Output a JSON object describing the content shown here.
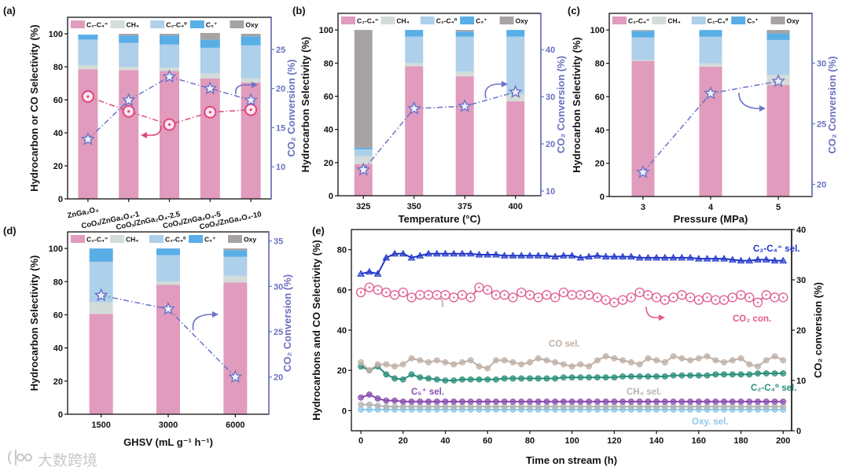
{
  "watermark": "大数跨境",
  "chart_data": [
    {
      "panel": "(a)",
      "type": "bar",
      "stacked": true,
      "categories": [
        "ZnGa₂O₄",
        "CoOₓ/ZnGa₂O₄-1",
        "CoOₓ/ZnGa₂O₄-2.5",
        "CoOₓ/ZnGa₂O₄-5",
        "CoOₓ/ZnGa₂O₄-10"
      ],
      "xlabel": "",
      "ylabel": "Hydrocarbon or CO Selectivity (%)",
      "y2label": "CO₂ Conversion (%)",
      "ylim": [
        0,
        110
      ],
      "yticks": [
        0,
        20,
        40,
        60,
        80,
        100
      ],
      "y2lim": [
        5.9,
        29.1
      ],
      "y2ticks": [
        10,
        15,
        20,
        25
      ],
      "legend": "top",
      "series": [
        {
          "name": "C₂-C₄⁼",
          "color": "#e09bbd",
          "values": [
            78.5,
            78,
            77.5,
            73,
            70.5
          ]
        },
        {
          "name": "CH₄",
          "color": "#d3dcd8",
          "values": [
            2.5,
            2,
            2,
            3,
            2.5
          ]
        },
        {
          "name": "C₂-C₄⁰",
          "color": "#aed0ea",
          "values": [
            15.5,
            14.5,
            14,
            15.5,
            20
          ]
        },
        {
          "name": "C₅⁺",
          "color": "#5aaee6",
          "values": [
            3,
            4.5,
            5.5,
            5,
            5.5
          ]
        },
        {
          "name": "Oxy",
          "color": "#a8a2a2",
          "values": [
            0,
            1,
            1,
            4,
            1.5
          ]
        }
      ],
      "lines": [
        {
          "key": "co-selectivity",
          "axis": "left",
          "marker": "circle",
          "color": "#e0457c",
          "values": [
            62,
            53,
            45,
            52.5,
            54
          ]
        },
        {
          "key": "co2-conversion",
          "axis": "right",
          "marker": "star",
          "color": "#6b72c6",
          "values": [
            13.5,
            18.5,
            21.5,
            20,
            18.5
          ]
        }
      ]
    },
    {
      "panel": "(b)",
      "type": "bar",
      "stacked": true,
      "categories": [
        "325",
        "350",
        "375",
        "400"
      ],
      "xlabel": "Temperature (°C)",
      "ylabel": "Hydrocarbon Selectivity (%)",
      "y2label": "CO₂ Conversion (%)",
      "ylim": [
        0,
        110
      ],
      "yticks": [
        0,
        20,
        40,
        60,
        80,
        100
      ],
      "y2lim": [
        9,
        47.7
      ],
      "y2ticks": [
        10,
        20,
        30,
        40
      ],
      "legend": "top",
      "series": [
        {
          "name": "C₂-C₄⁼",
          "color": "#e09bbd",
          "values": [
            19,
            78,
            72,
            57
          ]
        },
        {
          "name": "CH₄",
          "color": "#d3dcd8",
          "values": [
            5,
            2,
            3,
            4
          ]
        },
        {
          "name": "C₂-C₄⁰",
          "color": "#aed0ea",
          "values": [
            4,
            16,
            21,
            35
          ]
        },
        {
          "name": "C₅⁺",
          "color": "#5aaee6",
          "values": [
            1,
            4,
            3,
            4
          ]
        },
        {
          "name": "Oxy",
          "color": "#a8a2a2",
          "values": [
            71,
            0,
            1,
            0
          ]
        }
      ],
      "lines": [
        {
          "key": "co2-conversion",
          "axis": "right",
          "marker": "star",
          "color": "#6b72c6",
          "values": [
            14.5,
            27.5,
            28,
            31
          ]
        }
      ]
    },
    {
      "panel": "(c)",
      "type": "bar",
      "stacked": true,
      "categories": [
        "3",
        "4",
        "5"
      ],
      "xlabel": "Pressure (MPa)",
      "ylabel": "Hydrocarbon Selectivity (%)",
      "y2label": "CO₂ Conversion (%)",
      "ylim": [
        0,
        110
      ],
      "yticks": [
        0,
        20,
        40,
        60,
        80,
        100
      ],
      "y2lim": [
        19,
        34.1
      ],
      "y2ticks": [
        20,
        25,
        30
      ],
      "legend": "top",
      "series": [
        {
          "name": "C₂-C₄⁼",
          "color": "#e09bbd",
          "values": [
            81.5,
            78,
            67
          ]
        },
        {
          "name": "CH₄",
          "color": "#d3dcd8",
          "values": [
            0.5,
            2,
            6
          ]
        },
        {
          "name": "C₂-C₄⁰",
          "color": "#aed0ea",
          "values": [
            13.5,
            16,
            21
          ]
        },
        {
          "name": "C₅⁺",
          "color": "#5aaee6",
          "values": [
            4,
            4,
            4
          ]
        },
        {
          "name": "Oxy",
          "color": "#a8a2a2",
          "values": [
            0.5,
            0,
            2
          ]
        }
      ],
      "lines": [
        {
          "key": "co2-conversion",
          "axis": "right",
          "marker": "star",
          "color": "#6b72c6",
          "values": [
            21,
            27.5,
            28.5
          ]
        }
      ]
    },
    {
      "panel": "(d)",
      "type": "bar",
      "stacked": true,
      "categories": [
        "1500",
        "3000",
        "6000"
      ],
      "xlabel": "GHSV (mL g⁻¹ h⁻¹)",
      "ylabel": "Hydrocarbon Selectivity (%)",
      "y2label": "CO₂ Conversion (%)",
      "ylim": [
        0,
        110
      ],
      "yticks": [
        0,
        20,
        40,
        60,
        80,
        100
      ],
      "y2lim": [
        15.9,
        36
      ],
      "y2ticks": [
        20,
        25,
        30,
        35
      ],
      "legend": "top",
      "series": [
        {
          "name": "C₂-C₄⁼",
          "color": "#e09bbd",
          "values": [
            60.5,
            78,
            79.5
          ]
        },
        {
          "name": "CH₄",
          "color": "#d3dcd8",
          "values": [
            7,
            2,
            4
          ]
        },
        {
          "name": "C₂-C₄⁰",
          "color": "#aed0ea",
          "values": [
            24.5,
            16,
            11.5
          ]
        },
        {
          "name": "C₅⁺",
          "color": "#5aaee6",
          "values": [
            8,
            4,
            4
          ]
        },
        {
          "name": "Oxy",
          "color": "#a8a2a2",
          "values": [
            0,
            0,
            1
          ]
        }
      ],
      "lines": [
        {
          "key": "co2-conversion",
          "axis": "right",
          "marker": "star",
          "color": "#6b72c6",
          "values": [
            29,
            27.5,
            20
          ]
        }
      ]
    },
    {
      "panel": "(e)",
      "type": "scatter",
      "xlabel": "Time on stream (h)",
      "ylabel": "Hydrocarbons and CO Selectivity (%)",
      "y2label": "CO₂ conversion (%)",
      "xlim": [
        -4.5,
        204
      ],
      "xticks": [
        0,
        20,
        40,
        60,
        80,
        100,
        120,
        140,
        160,
        180,
        200
      ],
      "ylim": [
        -10,
        90
      ],
      "yticks": [
        0,
        20,
        40,
        60,
        80
      ],
      "y2lim": [
        0,
        40
      ],
      "y2ticks": [
        0,
        10,
        20,
        30,
        40
      ],
      "x": [
        0,
        4,
        8,
        12,
        16,
        20,
        24,
        28,
        32,
        36,
        40,
        44,
        48,
        52,
        56,
        60,
        64,
        68,
        72,
        76,
        80,
        84,
        88,
        92,
        96,
        100,
        104,
        108,
        112,
        116,
        120,
        124,
        128,
        132,
        136,
        140,
        144,
        148,
        152,
        156,
        160,
        164,
        168,
        172,
        176,
        180,
        184,
        188,
        192,
        196,
        200
      ],
      "series": [
        {
          "name": "C₂-C₄⁼ sel.",
          "axis": "left",
          "marker": "triangle",
          "color": "#2036c8",
          "values": [
            68,
            69,
            68,
            76,
            78,
            78,
            76,
            77,
            78,
            78,
            78,
            78,
            78,
            78,
            77.5,
            77.5,
            77.5,
            77,
            77,
            77,
            77,
            77,
            77,
            76.5,
            77,
            77,
            76,
            76.5,
            77,
            76.5,
            76.5,
            76.5,
            76.5,
            76,
            76,
            76,
            76,
            76,
            76,
            76,
            75.5,
            75.5,
            75.5,
            75.5,
            75,
            74.5,
            74.5,
            75,
            75,
            74.5,
            74.5
          ]
        },
        {
          "name": "CO₂ con.",
          "axis": "right",
          "marker": "open-circle",
          "color": "#e05a90",
          "values": [
            27.5,
            28.5,
            28,
            27.5,
            27,
            27.5,
            26.5,
            27,
            27,
            27,
            27,
            26.5,
            27,
            26.5,
            28.5,
            28,
            27,
            27,
            26.5,
            27.5,
            27,
            26.5,
            27,
            26.5,
            27.5,
            27,
            27,
            27,
            26.5,
            26,
            25.5,
            26,
            26.5,
            27.5,
            27,
            26.5,
            26,
            26.5,
            27,
            26.5,
            26,
            26.5,
            26,
            26,
            26.5,
            27,
            26.5,
            25.5,
            27,
            26.5,
            26.5
          ]
        },
        {
          "name": "CO sel.",
          "axis": "left",
          "marker": "circle",
          "color": "#bfb0a6",
          "values": [
            24,
            20,
            23,
            23,
            22,
            23,
            26,
            25,
            24,
            25,
            24,
            23,
            24,
            25,
            22,
            21,
            25,
            25,
            24,
            23,
            24,
            26,
            25,
            24,
            23,
            22,
            23,
            22,
            25,
            27,
            26,
            25,
            24,
            23,
            26,
            25,
            24,
            27,
            26,
            25,
            26,
            27,
            25,
            24,
            25,
            26,
            23,
            22,
            25,
            27,
            25
          ]
        },
        {
          "name": "C₂-C₄⁰ sel.",
          "axis": "left",
          "marker": "circle",
          "color": "#2a8f7a",
          "values": [
            22,
            20,
            22,
            18,
            16,
            15.5,
            18,
            16.5,
            16,
            15.5,
            15,
            15,
            15.5,
            15.5,
            15.5,
            15.5,
            15.5,
            16,
            16,
            16,
            16,
            16,
            16,
            16,
            16.5,
            16.5,
            16.5,
            16.5,
            16.5,
            16.5,
            16.5,
            17,
            17,
            17,
            17,
            17,
            17,
            17.5,
            17.5,
            17.5,
            17.5,
            17.5,
            18,
            18,
            18,
            18,
            18,
            18.5,
            18.5,
            18.5,
            18.5
          ]
        },
        {
          "name": "C₅⁺ sel.",
          "axis": "left",
          "marker": "circle",
          "color": "#8a4cb0",
          "values": [
            6.5,
            8,
            6,
            5,
            5,
            4.5,
            4.5,
            4.5,
            4.5,
            4.5,
            4.5,
            4.5,
            4.5,
            4.5,
            4.5,
            4.5,
            4.5,
            4.5,
            4.5,
            4.5,
            4.5,
            4.5,
            4.5,
            4.5,
            4.5,
            4.5,
            4.5,
            4.5,
            4.5,
            4.5,
            4.5,
            4.5,
            4.5,
            4.5,
            4.5,
            4.5,
            4.5,
            4.5,
            4.5,
            4.5,
            4.5,
            4.5,
            4.5,
            4.5,
            4.5,
            4.5,
            4.5,
            4.5,
            4.5,
            4.5,
            4.5
          ]
        },
        {
          "name": "CH₄ sel.",
          "axis": "left",
          "marker": "circle",
          "color": "#b4b4b4",
          "values": [
            3,
            3,
            2.5,
            2,
            2,
            2,
            2,
            2,
            2,
            2,
            2,
            2,
            2,
            2,
            2,
            2,
            2,
            2,
            2,
            2,
            2,
            2,
            2,
            2,
            2,
            2,
            2,
            2,
            2,
            2,
            2,
            2,
            2,
            2,
            2,
            2,
            2,
            2,
            2,
            2,
            2,
            2,
            2,
            2,
            2,
            2,
            2,
            2,
            2,
            2,
            2
          ]
        },
        {
          "name": "Oxy. sel.",
          "axis": "left",
          "marker": "circle",
          "color": "#8ec6ea",
          "values": [
            0.5,
            0.5,
            0.5,
            0.5,
            0.5,
            0.5,
            0.5,
            0.5,
            0.5,
            0.5,
            0.5,
            0.5,
            0.5,
            0.5,
            0.5,
            0.5,
            0.5,
            0.5,
            0.5,
            0.5,
            0.5,
            0.5,
            0.5,
            0.5,
            0.5,
            0.5,
            0.5,
            0.5,
            0.5,
            0.5,
            0.5,
            0.5,
            0.5,
            0.5,
            0.5,
            0.5,
            0.5,
            0.5,
            0.5,
            0.5,
            0.5,
            0.5,
            0.5,
            0.5,
            0.5,
            0.5,
            0.5,
            0.5,
            0.5,
            0.5,
            0.5
          ]
        }
      ]
    }
  ]
}
